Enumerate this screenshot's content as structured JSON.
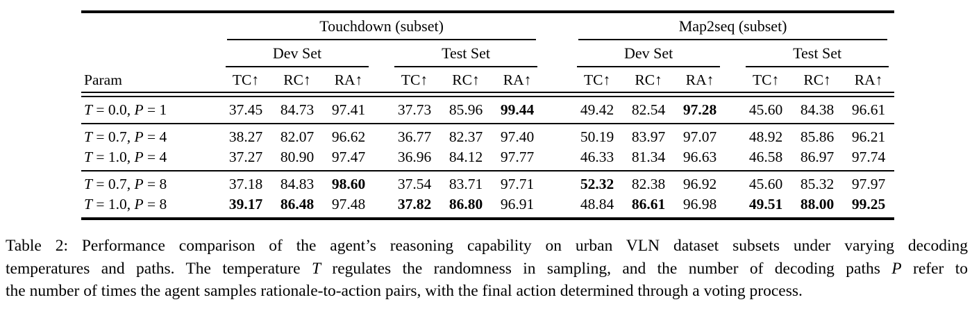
{
  "table": {
    "param_header": "Param",
    "metric_headers": [
      "TC↑",
      "RC↑",
      "RA↑"
    ],
    "col_groups": [
      {
        "label": "Touchdown (subset)",
        "subgroups": [
          "Dev Set",
          "Test Set"
        ]
      },
      {
        "label": "Map2seq (subset)",
        "subgroups": [
          "Dev Set",
          "Test Set"
        ]
      }
    ],
    "row_groups": [
      {
        "rows": [
          {
            "param": [
              {
                "text": "T",
                "italic": true
              },
              {
                "text": " = 0.0, ",
                "italic": false
              },
              {
                "text": "P",
                "italic": true
              },
              {
                "text": " = 1",
                "italic": false
              }
            ],
            "values": [
              {
                "v": "37.45",
                "bold": false
              },
              {
                "v": "84.73",
                "bold": false
              },
              {
                "v": "97.41",
                "bold": false
              },
              {
                "v": "37.73",
                "bold": false
              },
              {
                "v": "85.96",
                "bold": false
              },
              {
                "v": "99.44",
                "bold": true
              },
              {
                "v": "49.42",
                "bold": false
              },
              {
                "v": "82.54",
                "bold": false
              },
              {
                "v": "97.28",
                "bold": true
              },
              {
                "v": "45.60",
                "bold": false
              },
              {
                "v": "84.38",
                "bold": false
              },
              {
                "v": "96.61",
                "bold": false
              }
            ]
          }
        ]
      },
      {
        "rows": [
          {
            "param": [
              {
                "text": "T",
                "italic": true
              },
              {
                "text": " = 0.7, ",
                "italic": false
              },
              {
                "text": "P",
                "italic": true
              },
              {
                "text": " = 4",
                "italic": false
              }
            ],
            "values": [
              {
                "v": "38.27",
                "bold": false
              },
              {
                "v": "82.07",
                "bold": false
              },
              {
                "v": "96.62",
                "bold": false
              },
              {
                "v": "36.77",
                "bold": false
              },
              {
                "v": "82.37",
                "bold": false
              },
              {
                "v": "97.40",
                "bold": false
              },
              {
                "v": "50.19",
                "bold": false
              },
              {
                "v": "83.97",
                "bold": false
              },
              {
                "v": "97.07",
                "bold": false
              },
              {
                "v": "48.92",
                "bold": false
              },
              {
                "v": "85.86",
                "bold": false
              },
              {
                "v": "96.21",
                "bold": false
              }
            ]
          },
          {
            "param": [
              {
                "text": "T",
                "italic": true
              },
              {
                "text": " = 1.0, ",
                "italic": false
              },
              {
                "text": "P",
                "italic": true
              },
              {
                "text": " = 4",
                "italic": false
              }
            ],
            "values": [
              {
                "v": "37.27",
                "bold": false
              },
              {
                "v": "80.90",
                "bold": false
              },
              {
                "v": "97.47",
                "bold": false
              },
              {
                "v": "36.96",
                "bold": false
              },
              {
                "v": "84.12",
                "bold": false
              },
              {
                "v": "97.77",
                "bold": false
              },
              {
                "v": "46.33",
                "bold": false
              },
              {
                "v": "81.34",
                "bold": false
              },
              {
                "v": "96.63",
                "bold": false
              },
              {
                "v": "46.58",
                "bold": false
              },
              {
                "v": "86.97",
                "bold": false
              },
              {
                "v": "97.74",
                "bold": false
              }
            ]
          }
        ]
      },
      {
        "rows": [
          {
            "param": [
              {
                "text": "T",
                "italic": true
              },
              {
                "text": " = 0.7, ",
                "italic": false
              },
              {
                "text": "P",
                "italic": true
              },
              {
                "text": " = 8",
                "italic": false
              }
            ],
            "values": [
              {
                "v": "37.18",
                "bold": false
              },
              {
                "v": "84.83",
                "bold": false
              },
              {
                "v": "98.60",
                "bold": true
              },
              {
                "v": "37.54",
                "bold": false
              },
              {
                "v": "83.71",
                "bold": false
              },
              {
                "v": "97.71",
                "bold": false
              },
              {
                "v": "52.32",
                "bold": true
              },
              {
                "v": "82.38",
                "bold": false
              },
              {
                "v": "96.92",
                "bold": false
              },
              {
                "v": "45.60",
                "bold": false
              },
              {
                "v": "85.32",
                "bold": false
              },
              {
                "v": "97.97",
                "bold": false
              }
            ]
          },
          {
            "param": [
              {
                "text": "T",
                "italic": true
              },
              {
                "text": " = 1.0, ",
                "italic": false
              },
              {
                "text": "P",
                "italic": true
              },
              {
                "text": " = 8",
                "italic": false
              }
            ],
            "values": [
              {
                "v": "39.17",
                "bold": true
              },
              {
                "v": "86.48",
                "bold": true
              },
              {
                "v": "97.48",
                "bold": false
              },
              {
                "v": "37.82",
                "bold": true
              },
              {
                "v": "86.80",
                "bold": true
              },
              {
                "v": "96.91",
                "bold": false
              },
              {
                "v": "48.84",
                "bold": false
              },
              {
                "v": "86.61",
                "bold": true
              },
              {
                "v": "96.98",
                "bold": false
              },
              {
                "v": "49.51",
                "bold": true
              },
              {
                "v": "88.00",
                "bold": true
              },
              {
                "v": "99.25",
                "bold": true
              }
            ]
          }
        ]
      }
    ]
  },
  "caption": {
    "lines": [
      [
        {
          "text": "Table 2: Performance comparison of the agent’s reasoning capability on urban VLN dataset subsets under varying decoding",
          "italic": false
        }
      ],
      [
        {
          "text": "temperatures and paths. The temperature ",
          "italic": false
        },
        {
          "text": "T",
          "italic": true
        },
        {
          "text": " regulates the randomness in sampling, and the number of decoding paths ",
          "italic": false
        },
        {
          "text": "P",
          "italic": true
        },
        {
          "text": " refer to",
          "italic": false
        }
      ],
      [
        {
          "text": "the number of times the agent samples rationale-to-action pairs, with the final action determined through a voting process.",
          "italic": false
        }
      ]
    ]
  }
}
